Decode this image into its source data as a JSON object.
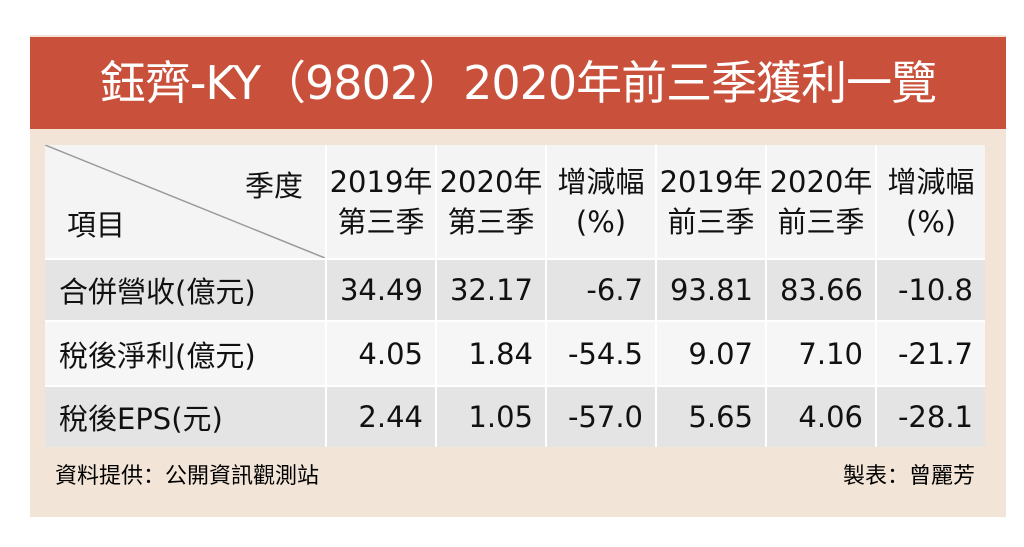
{
  "header": {
    "title": "鈺齊-KY（9802）2020年前三季獲利一覽"
  },
  "table": {
    "corner": {
      "top": "季度",
      "bottom": "項目"
    },
    "columns": [
      [
        "2019年",
        "第三季"
      ],
      [
        "2020年",
        "第三季"
      ],
      [
        "增減幅",
        "(%)"
      ],
      [
        "2019年",
        "前三季"
      ],
      [
        "2020年",
        "前三季"
      ],
      [
        "增減幅",
        "(%)"
      ]
    ],
    "rows": [
      [
        "合併營收(億元)",
        "34.49",
        "32.17",
        "-6.7",
        "93.81",
        "83.66",
        "-10.8"
      ],
      [
        "稅後淨利(億元)",
        "4.05",
        "1.84",
        "-54.5",
        "9.07",
        "7.10",
        "-21.7"
      ],
      [
        "稅後EPS(元)",
        "2.44",
        "1.05",
        "-57.0",
        "5.65",
        "4.06",
        "-28.1"
      ]
    ]
  },
  "footer": {
    "source": "資料提供：公開資訊觀測站",
    "credit": "製表：曾麗芳"
  }
}
